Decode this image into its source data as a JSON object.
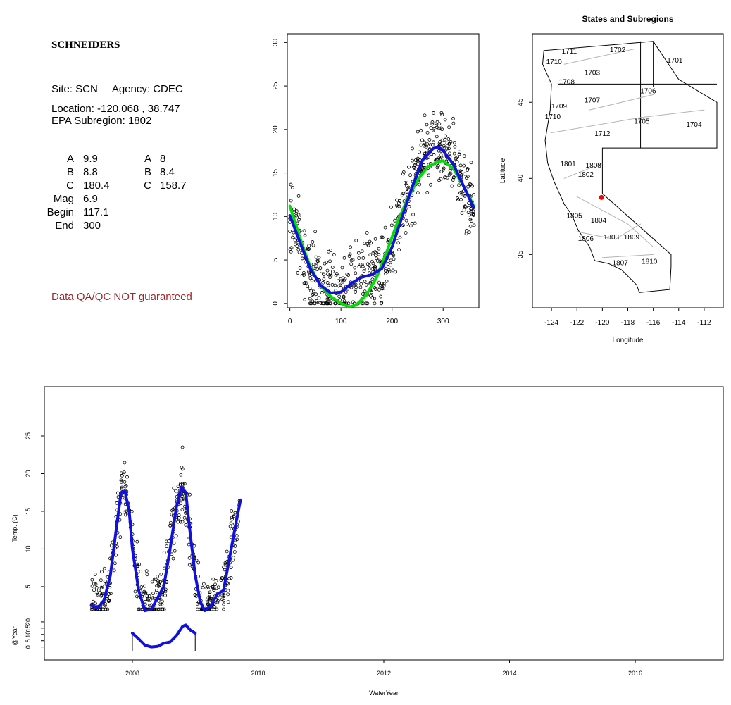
{
  "site_panel": {
    "name": "SCHNEIDERS",
    "site_line": "Site: SCN     Agency: CDEC",
    "location_line": "Location: -120.068 , 38.747",
    "subregion_line": "EPA Subregion: 1802",
    "params": [
      {
        "key": "A",
        "v1": "9.9",
        "k2": "A",
        "v2": "8"
      },
      {
        "key": "B",
        "v1": "8.8",
        "k2": "B",
        "v2": "8.4"
      },
      {
        "key": "C",
        "v1": "180.4",
        "k2": "C",
        "v2": "158.7"
      },
      {
        "key": "Mag",
        "v1": "6.9",
        "k2": "",
        "v2": ""
      },
      {
        "key": "Begin",
        "v1": "117.1",
        "k2": "",
        "v2": ""
      },
      {
        "key": "End",
        "v1": "300",
        "k2": "",
        "v2": ""
      }
    ],
    "qa_note": "Data QA/QC NOT guaranteed",
    "qa_color": "#a0282a"
  },
  "chart_data": [
    {
      "type": "scatter",
      "id": "seasonal",
      "title": "",
      "xlabel": "",
      "ylabel": "",
      "xlim": [
        -5,
        370
      ],
      "ylim": [
        -0.5,
        31
      ],
      "xticks": [
        0,
        100,
        200,
        300
      ],
      "yticks": [
        0,
        5,
        10,
        15,
        20,
        25,
        30
      ],
      "curves": [
        {
          "color": "#00e000",
          "points": [
            [
              0,
              11.2
            ],
            [
              20,
              7.5
            ],
            [
              40,
              4.2
            ],
            [
              60,
              2.0
            ],
            [
              80,
              0.8
            ],
            [
              100,
              0
            ],
            [
              115,
              -0.4
            ],
            [
              130,
              -0.2
            ],
            [
              150,
              1.0
            ],
            [
              170,
              3.0
            ],
            [
              190,
              6.0
            ],
            [
              210,
              9.2
            ],
            [
              230,
              12.0
            ],
            [
              250,
              14.2
            ],
            [
              270,
              15.7
            ],
            [
              290,
              16.3
            ],
            [
              300,
              16.4
            ],
            [
              320,
              15.5
            ],
            [
              340,
              13.5
            ],
            [
              360,
              11.2
            ]
          ]
        },
        {
          "color": "#1010e0",
          "points": [
            [
              0,
              10.1
            ],
            [
              20,
              7.0
            ],
            [
              40,
              4.0
            ],
            [
              60,
              2.1
            ],
            [
              80,
              1.2
            ],
            [
              100,
              1.3
            ],
            [
              120,
              2.3
            ],
            [
              140,
              3.0
            ],
            [
              160,
              3.3
            ],
            [
              180,
              4.0
            ],
            [
              200,
              6.5
            ],
            [
              220,
              10.0
            ],
            [
              240,
              13.5
            ],
            [
              260,
              16.5
            ],
            [
              280,
              17.8
            ],
            [
              290,
              18.0
            ],
            [
              300,
              17.6
            ],
            [
              320,
              16.0
            ],
            [
              340,
              13.5
            ],
            [
              360,
              11.0
            ]
          ]
        }
      ]
    },
    {
      "type": "map",
      "id": "regions",
      "title": "States and Subregions",
      "xlabel": "Longitude",
      "ylabel": "Latitude",
      "xlim": [
        -125.5,
        -110.5
      ],
      "ylim": [
        31.5,
        49.5
      ],
      "xticks": [
        -124,
        -122,
        -120,
        -118,
        -116,
        -114,
        -112
      ],
      "yticks": [
        35,
        40,
        45
      ],
      "site_point": {
        "lon": -120.068,
        "lat": 38.747,
        "color": "#ff0000"
      },
      "region_labels": [
        {
          "label": "1711",
          "lon": -122.6,
          "lat": 48.2
        },
        {
          "label": "1710",
          "lon": -123.8,
          "lat": 47.5
        },
        {
          "label": "1702",
          "lon": -118.8,
          "lat": 48.3
        },
        {
          "label": "1701",
          "lon": -114.3,
          "lat": 47.6
        },
        {
          "label": "1703",
          "lon": -120.8,
          "lat": 46.8
        },
        {
          "label": "1708",
          "lon": -122.8,
          "lat": 46.2
        },
        {
          "label": "1706",
          "lon": -116.4,
          "lat": 45.6
        },
        {
          "label": "1707",
          "lon": -120.8,
          "lat": 45.0
        },
        {
          "label": "1709",
          "lon": -123.4,
          "lat": 44.6
        },
        {
          "label": "1710",
          "lon": -123.9,
          "lat": 43.9
        },
        {
          "label": "1705",
          "lon": -116.9,
          "lat": 43.6
        },
        {
          "label": "1704",
          "lon": -112.8,
          "lat": 43.4
        },
        {
          "label": "1712",
          "lon": -120.0,
          "lat": 42.8
        },
        {
          "label": "1801",
          "lon": -122.7,
          "lat": 40.8
        },
        {
          "label": "1808",
          "lon": -120.7,
          "lat": 40.7
        },
        {
          "label": "1802",
          "lon": -121.3,
          "lat": 40.1
        },
        {
          "label": "1805",
          "lon": -122.2,
          "lat": 37.4
        },
        {
          "label": "1804",
          "lon": -120.3,
          "lat": 37.1
        },
        {
          "label": "1806",
          "lon": -121.3,
          "lat": 35.9
        },
        {
          "label": "1803",
          "lon": -119.3,
          "lat": 36.0
        },
        {
          "label": "1809",
          "lon": -117.7,
          "lat": 36.0
        },
        {
          "label": "1807",
          "lon": -118.6,
          "lat": 34.3
        },
        {
          "label": "1810",
          "lon": -116.3,
          "lat": 34.4
        }
      ]
    },
    {
      "type": "line",
      "id": "timeseries",
      "title": "",
      "xlabel": "WaterYear",
      "ylabel": "Temp. (C)",
      "xlim": [
        2006.6,
        2017.4
      ],
      "ylim": [
        0,
        29
      ],
      "xticks": [
        2008,
        2010,
        2012,
        2014,
        2016
      ],
      "yticks": [
        5,
        10,
        15,
        20,
        25
      ],
      "fit": {
        "color": "#1010e0",
        "points": [
          [
            2007.35,
            2.5
          ],
          [
            2007.45,
            2.2
          ],
          [
            2007.55,
            3.2
          ],
          [
            2007.65,
            6.5
          ],
          [
            2007.75,
            13.0
          ],
          [
            2007.82,
            17.5
          ],
          [
            2007.88,
            17.7
          ],
          [
            2007.95,
            15.0
          ],
          [
            2008.0,
            10.0
          ],
          [
            2008.1,
            4.5
          ],
          [
            2008.2,
            1.8
          ],
          [
            2008.3,
            2.0
          ],
          [
            2008.4,
            3.5
          ],
          [
            2008.5,
            5.0
          ],
          [
            2008.6,
            10.0
          ],
          [
            2008.7,
            15.5
          ],
          [
            2008.78,
            18.2
          ],
          [
            2008.85,
            17.5
          ],
          [
            2008.92,
            12.0
          ],
          [
            2009.0,
            6.5
          ],
          [
            2009.08,
            3.0
          ],
          [
            2009.15,
            1.8
          ],
          [
            2009.25,
            2.5
          ],
          [
            2009.35,
            4.0
          ],
          [
            2009.45,
            4.5
          ],
          [
            2009.55,
            9.0
          ],
          [
            2009.65,
            13.5
          ],
          [
            2009.72,
            16.5
          ]
        ]
      }
    },
    {
      "type": "line",
      "id": "year_panel",
      "title": "",
      "xlabel": "",
      "ylabel": "@Year",
      "ylim": [
        -3,
        25
      ],
      "yticks": [
        0,
        5,
        10,
        15,
        20
      ],
      "fit": {
        "color": "#1010e0",
        "points": [
          [
            2008.0,
            11.0
          ],
          [
            2008.1,
            6.5
          ],
          [
            2008.2,
            1.5
          ],
          [
            2008.3,
            0
          ],
          [
            2008.4,
            0.5
          ],
          [
            2008.5,
            3.0
          ],
          [
            2008.6,
            4.0
          ],
          [
            2008.7,
            9.0
          ],
          [
            2008.8,
            16.5
          ],
          [
            2008.85,
            17.5
          ],
          [
            2008.92,
            13.5
          ],
          [
            2009.0,
            11.0
          ]
        ]
      },
      "brackets": [
        2008.0,
        2009.0
      ]
    }
  ]
}
